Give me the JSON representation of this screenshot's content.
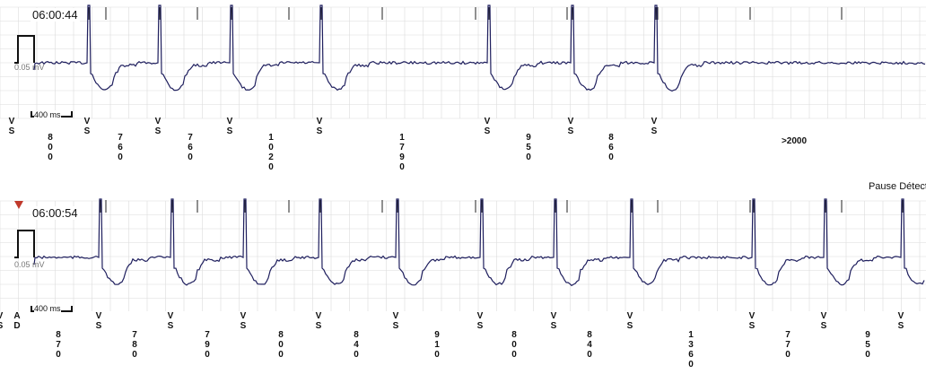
{
  "strips": [
    {
      "time": "06:00:44",
      "calibration_label": "0.05 mV",
      "scale_label": "400 ms",
      "beats": [
        {
          "label": [
            "V",
            "S"
          ]
        },
        {
          "label": [
            "V",
            "S"
          ]
        },
        {
          "label": [
            "V",
            "S"
          ]
        },
        {
          "label": [
            "V",
            "S"
          ]
        },
        {
          "label": [
            "V",
            "S"
          ]
        },
        {
          "label": [
            "V",
            "S"
          ]
        },
        {
          "label": [
            "V",
            "S"
          ]
        },
        {
          "label": [
            "V",
            "S"
          ]
        }
      ],
      "intervals": [
        "800",
        "760",
        "760",
        "1020",
        "1790",
        "950",
        "860",
        ">2000"
      ],
      "pause_label": "Pause Détect"
    },
    {
      "time": "06:00:54",
      "calibration_label": "0.05 mV",
      "scale_label": "400 ms",
      "beats": [
        {
          "label": [
            "A",
            "D"
          ]
        },
        {
          "label": [
            "V",
            "S"
          ]
        },
        {
          "label": [
            "V",
            "S"
          ]
        },
        {
          "label": [
            "V",
            "S"
          ]
        },
        {
          "label": [
            "V",
            "S"
          ]
        },
        {
          "label": [
            "V",
            "S"
          ]
        },
        {
          "label": [
            "V",
            "S"
          ]
        },
        {
          "label": [
            "V",
            "S"
          ]
        },
        {
          "label": [
            "V",
            "S"
          ]
        },
        {
          "label": [
            "V",
            "S"
          ]
        },
        {
          "label": [
            "V",
            "S"
          ]
        },
        {
          "label": [
            "V",
            "S"
          ]
        },
        {
          "label": [
            "V",
            "S"
          ]
        }
      ],
      "intervals": [
        "870",
        "780",
        "790",
        "800",
        "840",
        "910",
        "800",
        "840",
        "1360",
        "770",
        "950"
      ]
    }
  ],
  "colors": {
    "trace": "#1f1f5e",
    "grid": "#dcdcdc",
    "marker": "#c0392b"
  }
}
